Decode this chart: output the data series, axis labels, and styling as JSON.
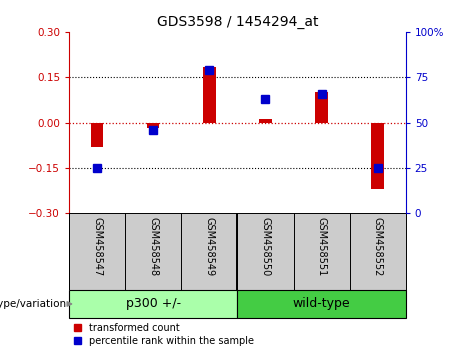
{
  "title": "GDS3598 / 1454294_at",
  "samples": [
    "GSM458547",
    "GSM458548",
    "GSM458549",
    "GSM458550",
    "GSM458551",
    "GSM458552"
  ],
  "red_values": [
    -0.08,
    -0.018,
    0.185,
    0.012,
    0.1,
    -0.22
  ],
  "blue_percentiles": [
    25,
    46,
    79,
    63,
    66,
    25
  ],
  "ylim_left": [
    -0.3,
    0.3
  ],
  "ylim_right": [
    0,
    100
  ],
  "yticks_left": [
    -0.3,
    -0.15,
    0,
    0.15,
    0.3
  ],
  "yticks_right": [
    0,
    25,
    50,
    75,
    100
  ],
  "hlines_dotted": [
    -0.15,
    0.15
  ],
  "hline_red": 0,
  "red_color": "#cc0000",
  "blue_color": "#0000cc",
  "group_p300_color": "#aaffaa",
  "group_wt_color": "#44cc44",
  "group_label": "genotype/variation",
  "group1_label": "p300 +/-",
  "group2_label": "wild-type",
  "legend_red": "transformed count",
  "legend_blue": "percentile rank within the sample",
  "bar_width": 0.22,
  "blue_square_size": 6,
  "title_fontsize": 10,
  "tick_fontsize": 7.5,
  "sample_fontsize": 7,
  "group_fontsize": 9,
  "legend_fontsize": 7
}
